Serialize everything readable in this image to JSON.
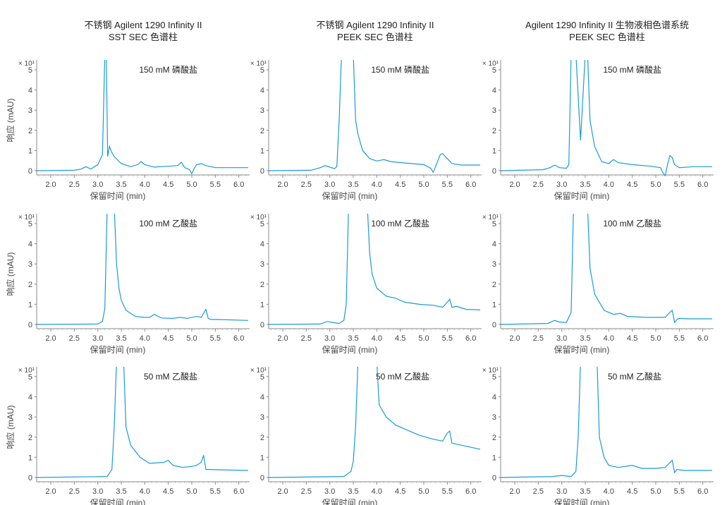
{
  "columns": [
    {
      "title_line1": "不锈钢 Agilent 1290 Infinity II",
      "title_line2": "SST SEC 色谱柱"
    },
    {
      "title_line1": "不锈钢 Agilent 1290 Infinity II",
      "title_line2": "PEEK SEC 色谱柱"
    },
    {
      "title_line1": "Agilent 1290 Infinity II 生物液相色谱系统",
      "title_line2": "PEEK SEC 色谱柱"
    }
  ],
  "colors": {
    "trace": "#1a9bd7",
    "axis": "#888888"
  },
  "chart_data": [
    {
      "type": "line",
      "row": 0,
      "col": 0,
      "annotation": "150 mM 磷酸盐",
      "xlabel": "保留时间 (min)",
      "ylabel": "响应 (mAU)",
      "y_multiplier": "× 10¹",
      "xlim": [
        1.7,
        6.2
      ],
      "ylim": [
        0,
        5.6
      ],
      "xticks": [
        2.0,
        2.5,
        3.0,
        3.5,
        4.0,
        4.5,
        5.0,
        5.5,
        6.0
      ],
      "yticks": [
        0,
        1,
        2,
        3,
        4,
        5
      ],
      "series": [
        {
          "x": [
            1.7,
            2.5,
            2.65,
            2.75,
            2.85,
            3.0,
            3.1,
            3.15,
            3.18,
            3.21,
            3.25,
            3.3,
            3.35,
            3.5,
            3.7,
            3.85,
            3.92,
            4.0,
            4.2,
            4.5,
            4.7,
            4.78,
            4.85,
            4.95,
            5.0,
            5.05,
            5.1,
            5.2,
            5.3,
            5.5,
            6.2
          ],
          "y": [
            0,
            0.02,
            0.08,
            0.2,
            0.08,
            0.3,
            0.8,
            5.8,
            5.8,
            0.7,
            1.2,
            0.9,
            0.7,
            0.35,
            0.2,
            0.3,
            0.45,
            0.3,
            0.18,
            0.22,
            0.25,
            0.42,
            0.15,
            0.05,
            -0.15,
            0.1,
            0.3,
            0.35,
            0.25,
            0.15,
            0.15
          ]
        }
      ]
    },
    {
      "type": "line",
      "row": 0,
      "col": 1,
      "annotation": "150 mM 磷酸盐",
      "xlabel": "保留时间 (min)",
      "ylabel": "响应 (mAU)",
      "y_multiplier": "× 10¹",
      "xlim": [
        1.7,
        6.2
      ],
      "ylim": [
        0,
        5.6
      ],
      "xticks": [
        2.0,
        2.5,
        3.0,
        3.5,
        4.0,
        4.5,
        5.0,
        5.5,
        6.0
      ],
      "yticks": [
        0,
        1,
        2,
        3,
        4,
        5
      ],
      "series": [
        {
          "x": [
            1.7,
            2.6,
            2.8,
            2.9,
            3.0,
            3.1,
            3.15,
            3.2,
            3.25,
            3.5,
            3.55,
            3.6,
            3.7,
            3.85,
            4.0,
            4.15,
            4.3,
            4.6,
            5.0,
            5.15,
            5.2,
            5.25,
            5.3,
            5.35,
            5.4,
            5.5,
            5.6,
            5.8,
            6.2
          ],
          "y": [
            0,
            0.02,
            0.15,
            0.25,
            0.18,
            0.1,
            0.2,
            2.5,
            5.8,
            5.8,
            2.5,
            1.8,
            1.0,
            0.6,
            0.48,
            0.55,
            0.45,
            0.38,
            0.3,
            0.12,
            -0.08,
            0.2,
            0.5,
            0.8,
            0.85,
            0.6,
            0.35,
            0.28,
            0.28
          ]
        }
      ]
    },
    {
      "type": "line",
      "row": 0,
      "col": 2,
      "annotation": "150 mM 磷酸盐",
      "xlabel": "保留时间 (min)",
      "ylabel": "响应 (mAU)",
      "y_multiplier": "× 10¹",
      "xlim": [
        1.7,
        6.2
      ],
      "ylim": [
        0,
        5.6
      ],
      "xticks": [
        2.0,
        2.5,
        3.0,
        3.5,
        4.0,
        4.5,
        5.0,
        5.5,
        6.0
      ],
      "yticks": [
        0,
        1,
        2,
        3,
        4,
        5
      ],
      "series": [
        {
          "x": [
            1.7,
            2.6,
            2.75,
            2.85,
            2.95,
            3.1,
            3.15,
            3.2,
            3.3,
            3.4,
            3.5,
            3.55,
            3.6,
            3.7,
            3.85,
            4.0,
            4.1,
            4.2,
            4.5,
            4.9,
            5.1,
            5.15,
            5.2,
            5.25,
            5.3,
            5.35,
            5.4,
            5.5,
            5.8,
            6.2
          ],
          "y": [
            0,
            0.05,
            0.15,
            0.28,
            0.15,
            0.12,
            0.3,
            5.8,
            5.8,
            1.5,
            5.8,
            5.8,
            2.5,
            1.2,
            0.45,
            0.35,
            0.55,
            0.4,
            0.3,
            0.22,
            0.15,
            -0.1,
            -0.25,
            0.3,
            0.75,
            0.65,
            0.3,
            0.15,
            0.2,
            0.2
          ]
        }
      ]
    },
    {
      "type": "line",
      "row": 1,
      "col": 0,
      "annotation": "100 mM 乙酸盐",
      "xlabel": "保留时间 (min)",
      "ylabel": "响应 (mAU)",
      "y_multiplier": "× 10¹",
      "xlim": [
        1.7,
        6.2
      ],
      "ylim": [
        0,
        5.6
      ],
      "xticks": [
        2.0,
        2.5,
        3.0,
        3.5,
        4.0,
        4.5,
        5.0,
        5.5,
        6.0
      ],
      "yticks": [
        0,
        1,
        2,
        3,
        4,
        5
      ],
      "series": [
        {
          "x": [
            1.7,
            3.0,
            3.1,
            3.15,
            3.2,
            3.35,
            3.4,
            3.45,
            3.5,
            3.6,
            3.8,
            4.0,
            4.1,
            4.2,
            4.35,
            4.6,
            4.75,
            4.9,
            5.1,
            5.2,
            5.3,
            5.35,
            5.4,
            5.5,
            6.2
          ],
          "y": [
            0,
            0.02,
            0.15,
            0.8,
            5.8,
            5.8,
            3.0,
            1.8,
            1.2,
            0.7,
            0.4,
            0.35,
            0.35,
            0.5,
            0.32,
            0.3,
            0.35,
            0.3,
            0.4,
            0.35,
            0.75,
            0.3,
            0.25,
            0.25,
            0.2
          ]
        }
      ]
    },
    {
      "type": "line",
      "row": 1,
      "col": 1,
      "annotation": "100 mM 乙酸盐",
      "xlabel": "保留时间 (min)",
      "ylabel": "响应 (mAU)",
      "y_multiplier": "× 10¹",
      "xlim": [
        1.7,
        6.2
      ],
      "ylim": [
        0,
        5.6
      ],
      "xticks": [
        2.0,
        2.5,
        3.0,
        3.5,
        4.0,
        4.5,
        5.0,
        5.5,
        6.0
      ],
      "yticks": [
        0,
        1,
        2,
        3,
        4,
        5
      ],
      "series": [
        {
          "x": [
            1.7,
            2.8,
            2.95,
            3.05,
            3.2,
            3.3,
            3.35,
            3.4,
            3.45,
            3.8,
            3.85,
            3.9,
            4.0,
            4.2,
            4.4,
            4.6,
            4.9,
            5.2,
            5.4,
            5.5,
            5.55,
            5.6,
            5.7,
            5.9,
            6.2
          ],
          "y": [
            0,
            0.02,
            0.15,
            0.1,
            0.05,
            0.2,
            1.0,
            5.8,
            5.8,
            5.8,
            3.5,
            2.5,
            1.8,
            1.4,
            1.3,
            1.1,
            1.0,
            0.95,
            0.85,
            1.1,
            1.25,
            0.85,
            0.9,
            0.75,
            0.72
          ]
        }
      ]
    },
    {
      "type": "line",
      "row": 1,
      "col": 2,
      "annotation": "100 mM 乙酸盐",
      "xlabel": "保留时间 (min)",
      "ylabel": "响应 (mAU)",
      "y_multiplier": "× 10¹",
      "xlim": [
        1.7,
        6.2
      ],
      "ylim": [
        0,
        5.6
      ],
      "xticks": [
        2.0,
        2.5,
        3.0,
        3.5,
        4.0,
        4.5,
        5.0,
        5.5,
        6.0
      ],
      "yticks": [
        0,
        1,
        2,
        3,
        4,
        5
      ],
      "series": [
        {
          "x": [
            1.7,
            2.7,
            2.85,
            2.95,
            3.1,
            3.2,
            3.25,
            3.55,
            3.6,
            3.7,
            3.9,
            4.1,
            4.25,
            4.4,
            4.8,
            5.2,
            5.3,
            5.35,
            5.4,
            5.45,
            5.5,
            5.7,
            6.2
          ],
          "y": [
            0,
            0.05,
            0.2,
            0.12,
            0.1,
            0.6,
            5.8,
            5.8,
            2.8,
            1.5,
            0.7,
            0.5,
            0.55,
            0.4,
            0.35,
            0.35,
            0.6,
            0.7,
            0.1,
            0.25,
            0.3,
            0.28,
            0.28
          ]
        }
      ]
    },
    {
      "type": "line",
      "row": 2,
      "col": 0,
      "annotation": "50 mM 乙酸盐",
      "xlabel": "保留时间 (min)",
      "ylabel": "响应 (mAU)",
      "y_multiplier": "× 10¹",
      "xlim": [
        1.7,
        6.2
      ],
      "ylim": [
        0,
        5.6
      ],
      "xticks": [
        2.0,
        2.5,
        3.0,
        3.5,
        4.0,
        4.5,
        5.0,
        5.5,
        6.0
      ],
      "yticks": [
        0,
        1,
        2,
        3,
        4,
        5
      ],
      "series": [
        {
          "x": [
            1.7,
            3.2,
            3.3,
            3.35,
            3.4,
            3.45,
            3.55,
            3.6,
            3.7,
            3.9,
            4.1,
            4.4,
            4.5,
            4.6,
            4.8,
            5.0,
            5.1,
            5.2,
            5.25,
            5.3,
            5.4,
            5.6,
            6.2
          ],
          "y": [
            0,
            0.05,
            0.4,
            2.5,
            5.8,
            5.8,
            5.8,
            2.5,
            1.6,
            1.0,
            0.7,
            0.75,
            0.85,
            0.6,
            0.5,
            0.55,
            0.6,
            0.75,
            1.1,
            0.4,
            0.4,
            0.38,
            0.35
          ]
        }
      ]
    },
    {
      "type": "line",
      "row": 2,
      "col": 1,
      "annotation": "50 mM 乙酸盐",
      "xlabel": "保留时间 (min)",
      "ylabel": "响应 (mAU)",
      "y_multiplier": "× 10¹",
      "xlim": [
        1.7,
        6.2
      ],
      "ylim": [
        0,
        5.6
      ],
      "xticks": [
        2.0,
        2.5,
        3.0,
        3.5,
        4.0,
        4.5,
        5.0,
        5.5,
        6.0
      ],
      "yticks": [
        0,
        1,
        2,
        3,
        4,
        5
      ],
      "series": [
        {
          "x": [
            1.7,
            3.3,
            3.45,
            3.5,
            3.55,
            3.6,
            4.0,
            4.05,
            4.2,
            4.4,
            4.6,
            4.9,
            5.2,
            5.4,
            5.5,
            5.55,
            5.6,
            5.8,
            6.2
          ],
          "y": [
            0,
            0.05,
            0.3,
            0.8,
            2.5,
            5.8,
            5.8,
            3.6,
            3.0,
            2.6,
            2.4,
            2.1,
            1.9,
            1.8,
            2.2,
            2.3,
            1.7,
            1.6,
            1.4
          ]
        }
      ]
    },
    {
      "type": "line",
      "row": 2,
      "col": 2,
      "annotation": "50 mM 乙酸盐",
      "xlabel": "保留时间 (min)",
      "ylabel": "响应 (mAU)",
      "y_multiplier": "× 10¹",
      "xlim": [
        1.7,
        6.2
      ],
      "ylim": [
        0,
        5.6
      ],
      "xticks": [
        2.0,
        2.5,
        3.0,
        3.5,
        4.0,
        4.5,
        5.0,
        5.5,
        6.0
      ],
      "yticks": [
        0,
        1,
        2,
        3,
        4,
        5
      ],
      "series": [
        {
          "x": [
            1.7,
            2.8,
            3.0,
            3.2,
            3.3,
            3.35,
            3.4,
            3.75,
            3.8,
            3.9,
            4.0,
            4.2,
            4.5,
            4.7,
            5.0,
            5.2,
            5.35,
            5.4,
            5.45,
            5.6,
            6.2
          ],
          "y": [
            0,
            0.05,
            0.1,
            0.05,
            0.3,
            2.0,
            5.8,
            5.8,
            2.0,
            1.0,
            0.6,
            0.5,
            0.6,
            0.45,
            0.45,
            0.5,
            0.85,
            0.25,
            0.4,
            0.35,
            0.35
          ]
        }
      ]
    }
  ]
}
